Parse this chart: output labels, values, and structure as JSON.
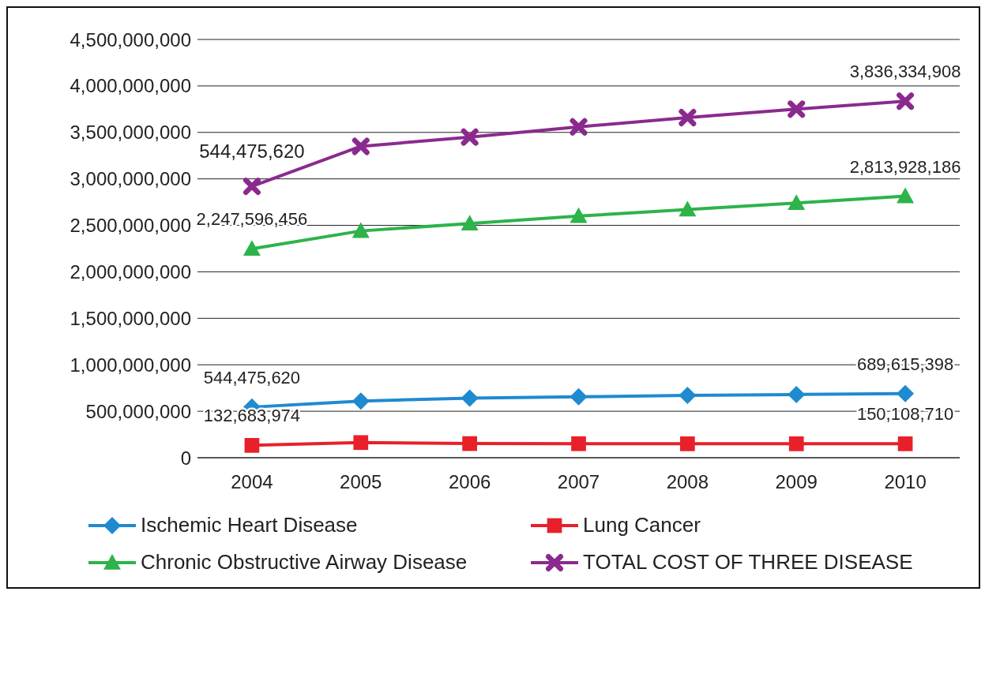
{
  "chart_data": {
    "type": "line",
    "categories": [
      "2004",
      "2005",
      "2006",
      "2007",
      "2008",
      "2009",
      "2010"
    ],
    "series": [
      {
        "name": "Ischemic Heart Disease",
        "color": "#1f8ad0",
        "marker": "diamond",
        "values": [
          544475620,
          610000000,
          640000000,
          655000000,
          670000000,
          680000000,
          689615398
        ],
        "value_labels": [
          "544,475,620",
          null,
          null,
          null,
          null,
          null,
          "689,615,398"
        ]
      },
      {
        "name": "Lung Cancer",
        "color": "#e8202a",
        "marker": "square",
        "values": [
          132683974,
          163000000,
          152000000,
          151000000,
          150000000,
          150000000,
          150108710
        ],
        "value_labels": [
          "132,683,974",
          null,
          null,
          null,
          null,
          null,
          "150,108,710"
        ]
      },
      {
        "name": "Chronic Obstructive Airway Disease",
        "color": "#2db34a",
        "marker": "triangle",
        "values": [
          2247596456,
          2440000000,
          2520000000,
          2600000000,
          2670000000,
          2740000000,
          2813928186
        ],
        "value_labels": [
          "2,247,596,456",
          null,
          null,
          null,
          null,
          null,
          "2,813,928,186"
        ]
      },
      {
        "name": "TOTAL COST OF THREE DISEASE",
        "color": "#8b2a8e",
        "marker": "cross",
        "values": [
          2920000000,
          3350000000,
          3450000000,
          3560000000,
          3660000000,
          3750000000,
          3836334908
        ],
        "value_labels": [
          null,
          null,
          null,
          null,
          null,
          null,
          "3,836,334,908"
        ]
      }
    ],
    "annotations": [
      {
        "text": "544,475,620",
        "x": "2004",
        "y": 2920000000
      }
    ],
    "ylim": [
      0,
      4500000000
    ],
    "yticks": [
      0,
      {
        "value": 500000000,
        "label": "500,000,000"
      },
      {
        "value": 1000000000,
        "label": "1,000,000,000"
      },
      {
        "value": 1500000000,
        "label": "1,500,000,000"
      },
      {
        "value": 2000000000,
        "label": "2,000,000,000"
      },
      {
        "value": 2500000000,
        "label": "2,500,000,000"
      },
      {
        "value": 3000000000,
        "label": "3,000,000,000"
      },
      {
        "value": 3500000000,
        "label": "3,500,000,000"
      },
      {
        "value": 4000000000,
        "label": "4,000,000,000"
      },
      {
        "value": 4500000000,
        "label": "4,500,000,000"
      }
    ],
    "grid": "y",
    "legend": "bottom",
    "line_style": "solid"
  }
}
